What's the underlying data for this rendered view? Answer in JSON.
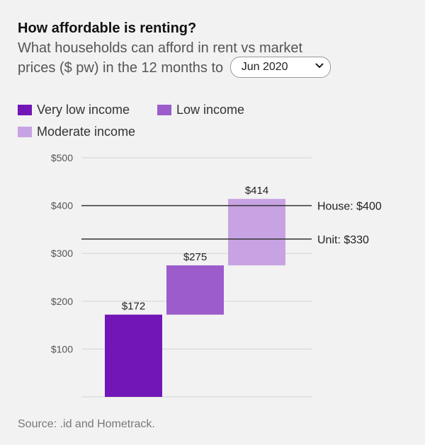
{
  "header": {
    "title": "How affordable is renting?",
    "subtitle_line1": "What households can afford in rent vs market",
    "subtitle_line2": "prices ($ pw) in the 12 months to"
  },
  "period_select": {
    "selected": "Jun 2020"
  },
  "icons": {
    "select": "chevron-down-icon"
  },
  "legend": [
    {
      "label": "Very low income",
      "color": "#7216b8"
    },
    {
      "label": "Low income",
      "color": "#9c5ccc"
    },
    {
      "label": "Moderate income",
      "color": "#c8a3e3"
    }
  ],
  "chart_data": {
    "type": "bar",
    "subtype": "waterfall",
    "categories": [
      "Very low income",
      "Low income",
      "Moderate income"
    ],
    "series": [
      {
        "name": "Very low income",
        "start": 0,
        "end": 172,
        "label": "$172",
        "color": "#7216b8"
      },
      {
        "name": "Low income",
        "start": 172,
        "end": 275,
        "label": "$275",
        "color": "#9c5ccc"
      },
      {
        "name": "Moderate income",
        "start": 275,
        "end": 414,
        "label": "$414",
        "color": "#c8a3e3"
      }
    ],
    "reference_lines": [
      {
        "label": "House: $400",
        "value": 400
      },
      {
        "label": "Unit: $330",
        "value": 330
      }
    ],
    "yticks": [
      {
        "value": 100,
        "label": "$100"
      },
      {
        "value": 200,
        "label": "$200"
      },
      {
        "value": 300,
        "label": "$300"
      },
      {
        "value": 400,
        "label": "$400"
      },
      {
        "value": 500,
        "label": "$500"
      }
    ],
    "ylim": [
      0,
      500
    ],
    "grid": true,
    "legend_position": "top-left"
  },
  "footer": {
    "source": "Source: .id and Hometrack."
  }
}
